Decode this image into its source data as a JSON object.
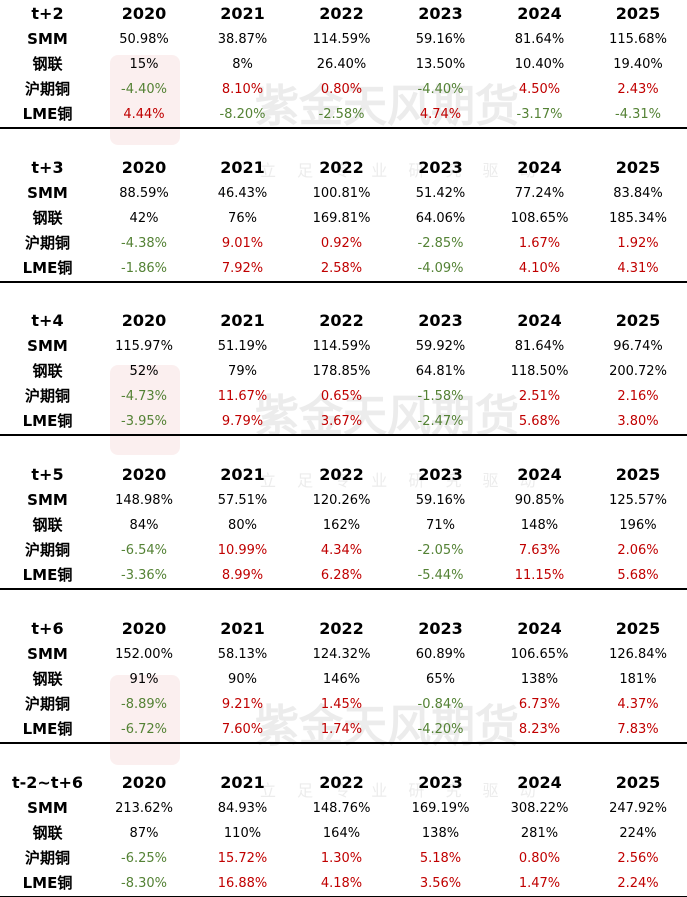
{
  "watermark": {
    "title": "紫金天风期货",
    "slogan": "立 足 专 业 研 究 驱 动"
  },
  "colors": {
    "positive": "#c00000",
    "negative": "#548235",
    "plain": "#000000"
  },
  "blocks": [
    {
      "header": [
        "t+2",
        "2020",
        "2021",
        "2022",
        "2023",
        "2024",
        "2025"
      ],
      "rows": [
        [
          "SMM",
          "50.98%",
          "38.87%",
          "114.59%",
          "59.16%",
          "81.64%",
          "115.68%"
        ],
        [
          "钢联",
          "15%",
          "8%",
          "26.40%",
          "13.50%",
          "10.40%",
          "19.40%"
        ],
        [
          "沪期铜",
          "-4.40%",
          "8.10%",
          "0.80%",
          "-4.40%",
          "4.50%",
          "2.43%"
        ],
        [
          "LME铜",
          "4.44%",
          "-8.20%",
          "-2.58%",
          "4.74%",
          "-3.17%",
          "-4.31%"
        ]
      ]
    },
    {
      "header": [
        "t+3",
        "2020",
        "2021",
        "2022",
        "2023",
        "2024",
        "2025"
      ],
      "rows": [
        [
          "SMM",
          "88.59%",
          "46.43%",
          "100.81%",
          "51.42%",
          "77.24%",
          "83.84%"
        ],
        [
          "钢联",
          "42%",
          "76%",
          "169.81%",
          "64.06%",
          "108.65%",
          "185.34%"
        ],
        [
          "沪期铜",
          "-4.38%",
          "9.01%",
          "0.92%",
          "-2.85%",
          "1.67%",
          "1.92%"
        ],
        [
          "LME铜",
          "-1.86%",
          "7.92%",
          "2.58%",
          "-4.09%",
          "4.10%",
          "4.31%"
        ]
      ]
    },
    {
      "header": [
        "t+4",
        "2020",
        "2021",
        "2022",
        "2023",
        "2024",
        "2025"
      ],
      "rows": [
        [
          "SMM",
          "115.97%",
          "51.19%",
          "114.59%",
          "59.92%",
          "81.64%",
          "96.74%"
        ],
        [
          "钢联",
          "52%",
          "79%",
          "178.85%",
          "64.81%",
          "118.50%",
          "200.72%"
        ],
        [
          "沪期铜",
          "-4.73%",
          "11.67%",
          "0.65%",
          "-1.58%",
          "2.51%",
          "2.16%"
        ],
        [
          "LME铜",
          "-3.95%",
          "9.79%",
          "3.67%",
          "-2.47%",
          "5.68%",
          "3.80%"
        ]
      ]
    },
    {
      "header": [
        "t+5",
        "2020",
        "2021",
        "2022",
        "2023",
        "2024",
        "2025"
      ],
      "rows": [
        [
          "SMM",
          "148.98%",
          "57.51%",
          "120.26%",
          "59.16%",
          "90.85%",
          "125.57%"
        ],
        [
          "钢联",
          "84%",
          "80%",
          "162%",
          "71%",
          "148%",
          "196%"
        ],
        [
          "沪期铜",
          "-6.54%",
          "10.99%",
          "4.34%",
          "-2.05%",
          "7.63%",
          "2.06%"
        ],
        [
          "LME铜",
          "-3.36%",
          "8.99%",
          "6.28%",
          "-5.44%",
          "11.15%",
          "5.68%"
        ]
      ]
    },
    {
      "header": [
        "t+6",
        "2020",
        "2021",
        "2022",
        "2023",
        "2024",
        "2025"
      ],
      "rows": [
        [
          "SMM",
          "152.00%",
          "58.13%",
          "124.32%",
          "60.89%",
          "106.65%",
          "126.84%"
        ],
        [
          "钢联",
          "91%",
          "90%",
          "146%",
          "65%",
          "138%",
          "181%"
        ],
        [
          "沪期铜",
          "-8.89%",
          "9.21%",
          "1.45%",
          "-0.84%",
          "6.73%",
          "4.37%"
        ],
        [
          "LME铜",
          "-6.72%",
          "7.60%",
          "1.74%",
          "-4.20%",
          "8.23%",
          "7.83%"
        ]
      ]
    },
    {
      "header": [
        "t-2~t+6",
        "2020",
        "2021",
        "2022",
        "2023",
        "2024",
        "2025"
      ],
      "rows": [
        [
          "SMM",
          "213.62%",
          "84.93%",
          "148.76%",
          "169.19%",
          "308.22%",
          "247.92%"
        ],
        [
          "钢联",
          "87%",
          "110%",
          "164%",
          "138%",
          "281%",
          "224%"
        ],
        [
          "沪期铜",
          "-6.25%",
          "15.72%",
          "1.30%",
          "5.18%",
          "0.80%",
          "2.56%"
        ],
        [
          "LME铜",
          "-8.30%",
          "16.88%",
          "4.18%",
          "3.56%",
          "1.47%",
          "2.24%"
        ]
      ]
    }
  ]
}
